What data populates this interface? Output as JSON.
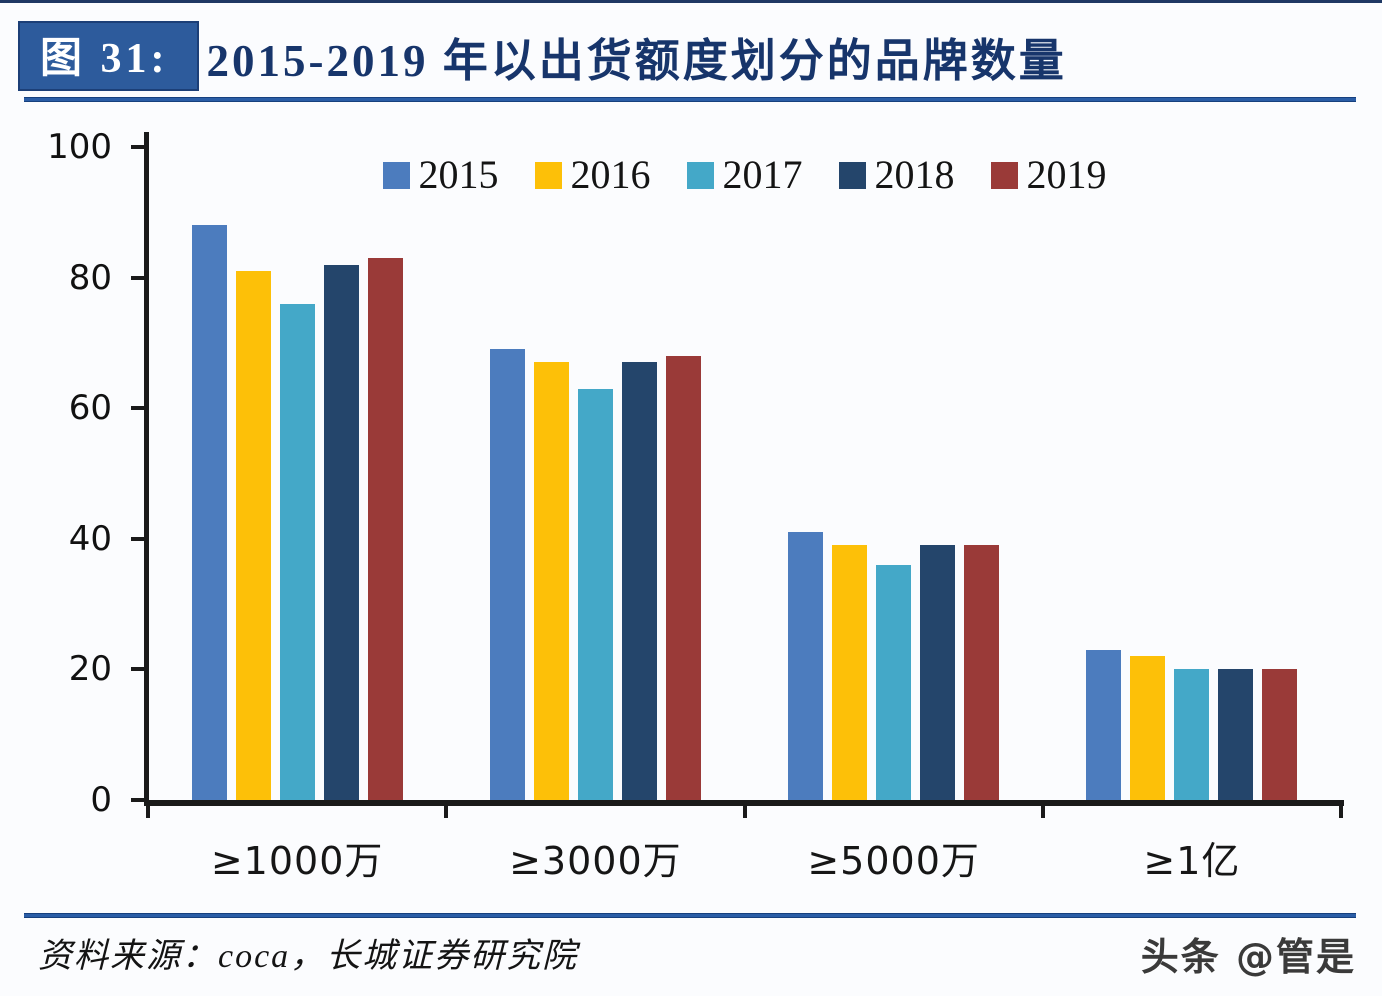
{
  "page": {
    "background": "#fbfcfe",
    "accent_blue": "#2d5b9c",
    "title_navy": "#17356b",
    "axis_color": "#1a1a1a"
  },
  "header": {
    "figure_label": "图 31:",
    "title": "2015-2019 年以出货额度划分的品牌数量"
  },
  "footer": {
    "source": "资料来源：coca，长城证券研究院",
    "watermark": "头条 @管是"
  },
  "chart_data": {
    "type": "bar",
    "title": "2015-2019 年以出货额度划分的品牌数量",
    "categories": [
      "≥1000万",
      "≥3000万",
      "≥5000万",
      "≥1亿"
    ],
    "series": [
      {
        "name": "2015",
        "color": "#4c7cbe",
        "values": [
          88,
          69,
          41,
          23
        ]
      },
      {
        "name": "2016",
        "color": "#fdc008",
        "values": [
          81,
          67,
          39,
          22
        ]
      },
      {
        "name": "2017",
        "color": "#44a8c8",
        "values": [
          76,
          63,
          36,
          20
        ]
      },
      {
        "name": "2018",
        "color": "#24456b",
        "values": [
          82,
          67,
          39,
          20
        ]
      },
      {
        "name": "2019",
        "color": "#9a3a38",
        "values": [
          83,
          68,
          39,
          20
        ]
      }
    ],
    "xlabel": "",
    "ylabel": "",
    "ylim": [
      0,
      100
    ],
    "yticks": [
      0,
      20,
      40,
      60,
      80,
      100
    ],
    "grid": false,
    "legend_position": "top-center"
  }
}
